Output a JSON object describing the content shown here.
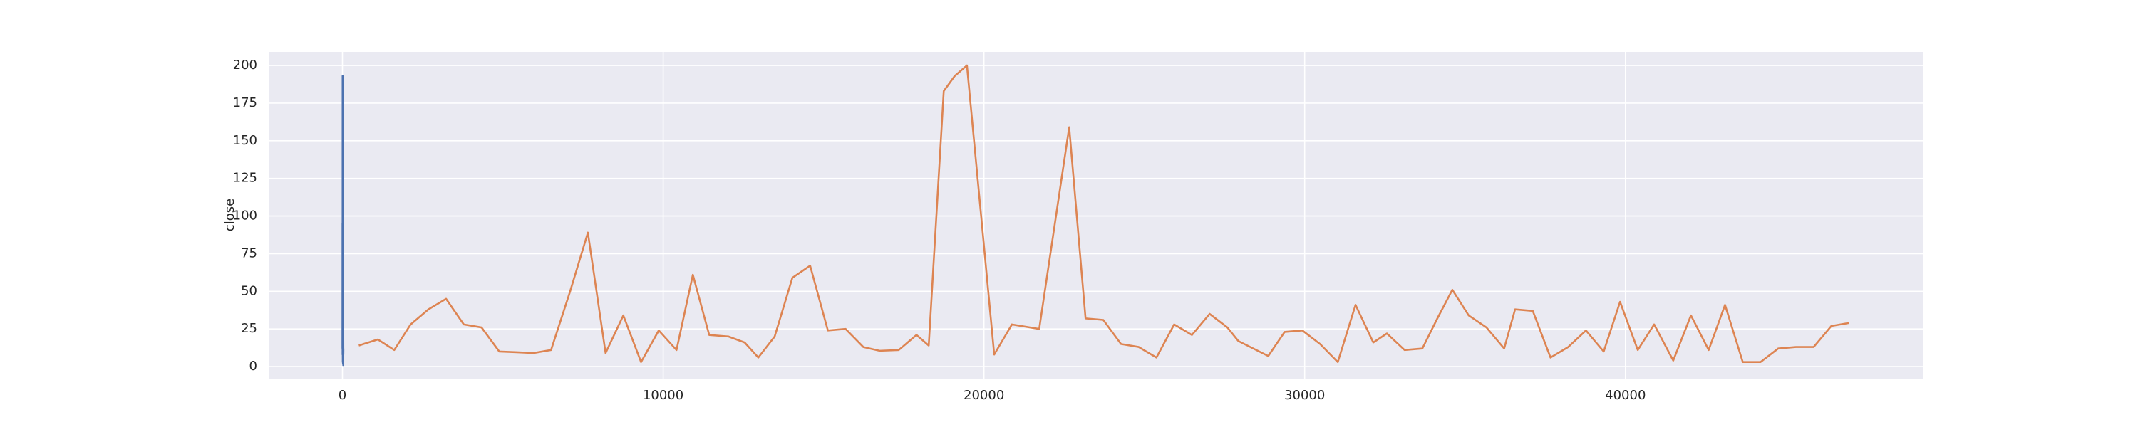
{
  "chart_data": {
    "type": "line",
    "ylabel": "close",
    "series": [
      {
        "color": "#4c72b0",
        "x": [
          0,
          2,
          4,
          6,
          8,
          10,
          12,
          14,
          16,
          18,
          20,
          22,
          24,
          26,
          28,
          30
        ],
        "values": [
          12,
          95,
          8,
          193,
          15,
          3,
          55,
          10,
          2,
          30,
          5,
          25,
          1,
          20,
          8,
          12
        ]
      },
      {
        "color": "#dd8452",
        "x": [
          510,
          1105,
          1615,
          2126,
          2678,
          3231,
          3783,
          4336,
          4889,
          5441,
          5951,
          6504,
          7099,
          7652,
          8204,
          8757,
          9310,
          9862,
          10415,
          10925,
          11435,
          12030,
          12540,
          12966,
          13476,
          14028,
          14581,
          15134,
          15686,
          16239,
          16749,
          17344,
          17897,
          18279,
          18747,
          19087,
          19470,
          20320,
          20872,
          21723,
          22658,
          23168,
          23721,
          24273,
          24826,
          25378,
          25931,
          26484,
          27036,
          27589,
          27929,
          28864,
          29374,
          29927,
          30480,
          31032,
          31585,
          32138,
          32563,
          33115,
          33668,
          34136,
          34603,
          35113,
          35666,
          36219,
          36559,
          37111,
          37664,
          38216,
          38769,
          39322,
          39832,
          40385,
          40895,
          41490,
          42042,
          42595,
          43105,
          43658,
          44210,
          44763,
          45316,
          45868,
          46421,
          46974
        ],
        "values": [
          14,
          18,
          11,
          28,
          38,
          45,
          28,
          26,
          10,
          9.5,
          9,
          11,
          50,
          89,
          9,
          34,
          3,
          24,
          11,
          61,
          21,
          20,
          16,
          6,
          20,
          59,
          67,
          24,
          25,
          13,
          10.5,
          11,
          21,
          14,
          183,
          193,
          200,
          8,
          28,
          25,
          159,
          32,
          31,
          15,
          13,
          6,
          28,
          21,
          35,
          26,
          17,
          7,
          23,
          24,
          15,
          3,
          41,
          16,
          22,
          11,
          12,
          32,
          51,
          34,
          26,
          12,
          38,
          37,
          6,
          13,
          24,
          10,
          43,
          11,
          28,
          4,
          34,
          11,
          41,
          3,
          3,
          12,
          13,
          13,
          27,
          29
        ]
      }
    ],
    "xlim": [
      -2300,
      49270
    ],
    "xticks": [
      0,
      10000,
      20000,
      30000,
      40000
    ],
    "ylim": [
      -8,
      209
    ],
    "yticks": [
      0,
      25,
      50,
      75,
      100,
      125,
      150,
      175,
      200
    ],
    "grid": true
  }
}
